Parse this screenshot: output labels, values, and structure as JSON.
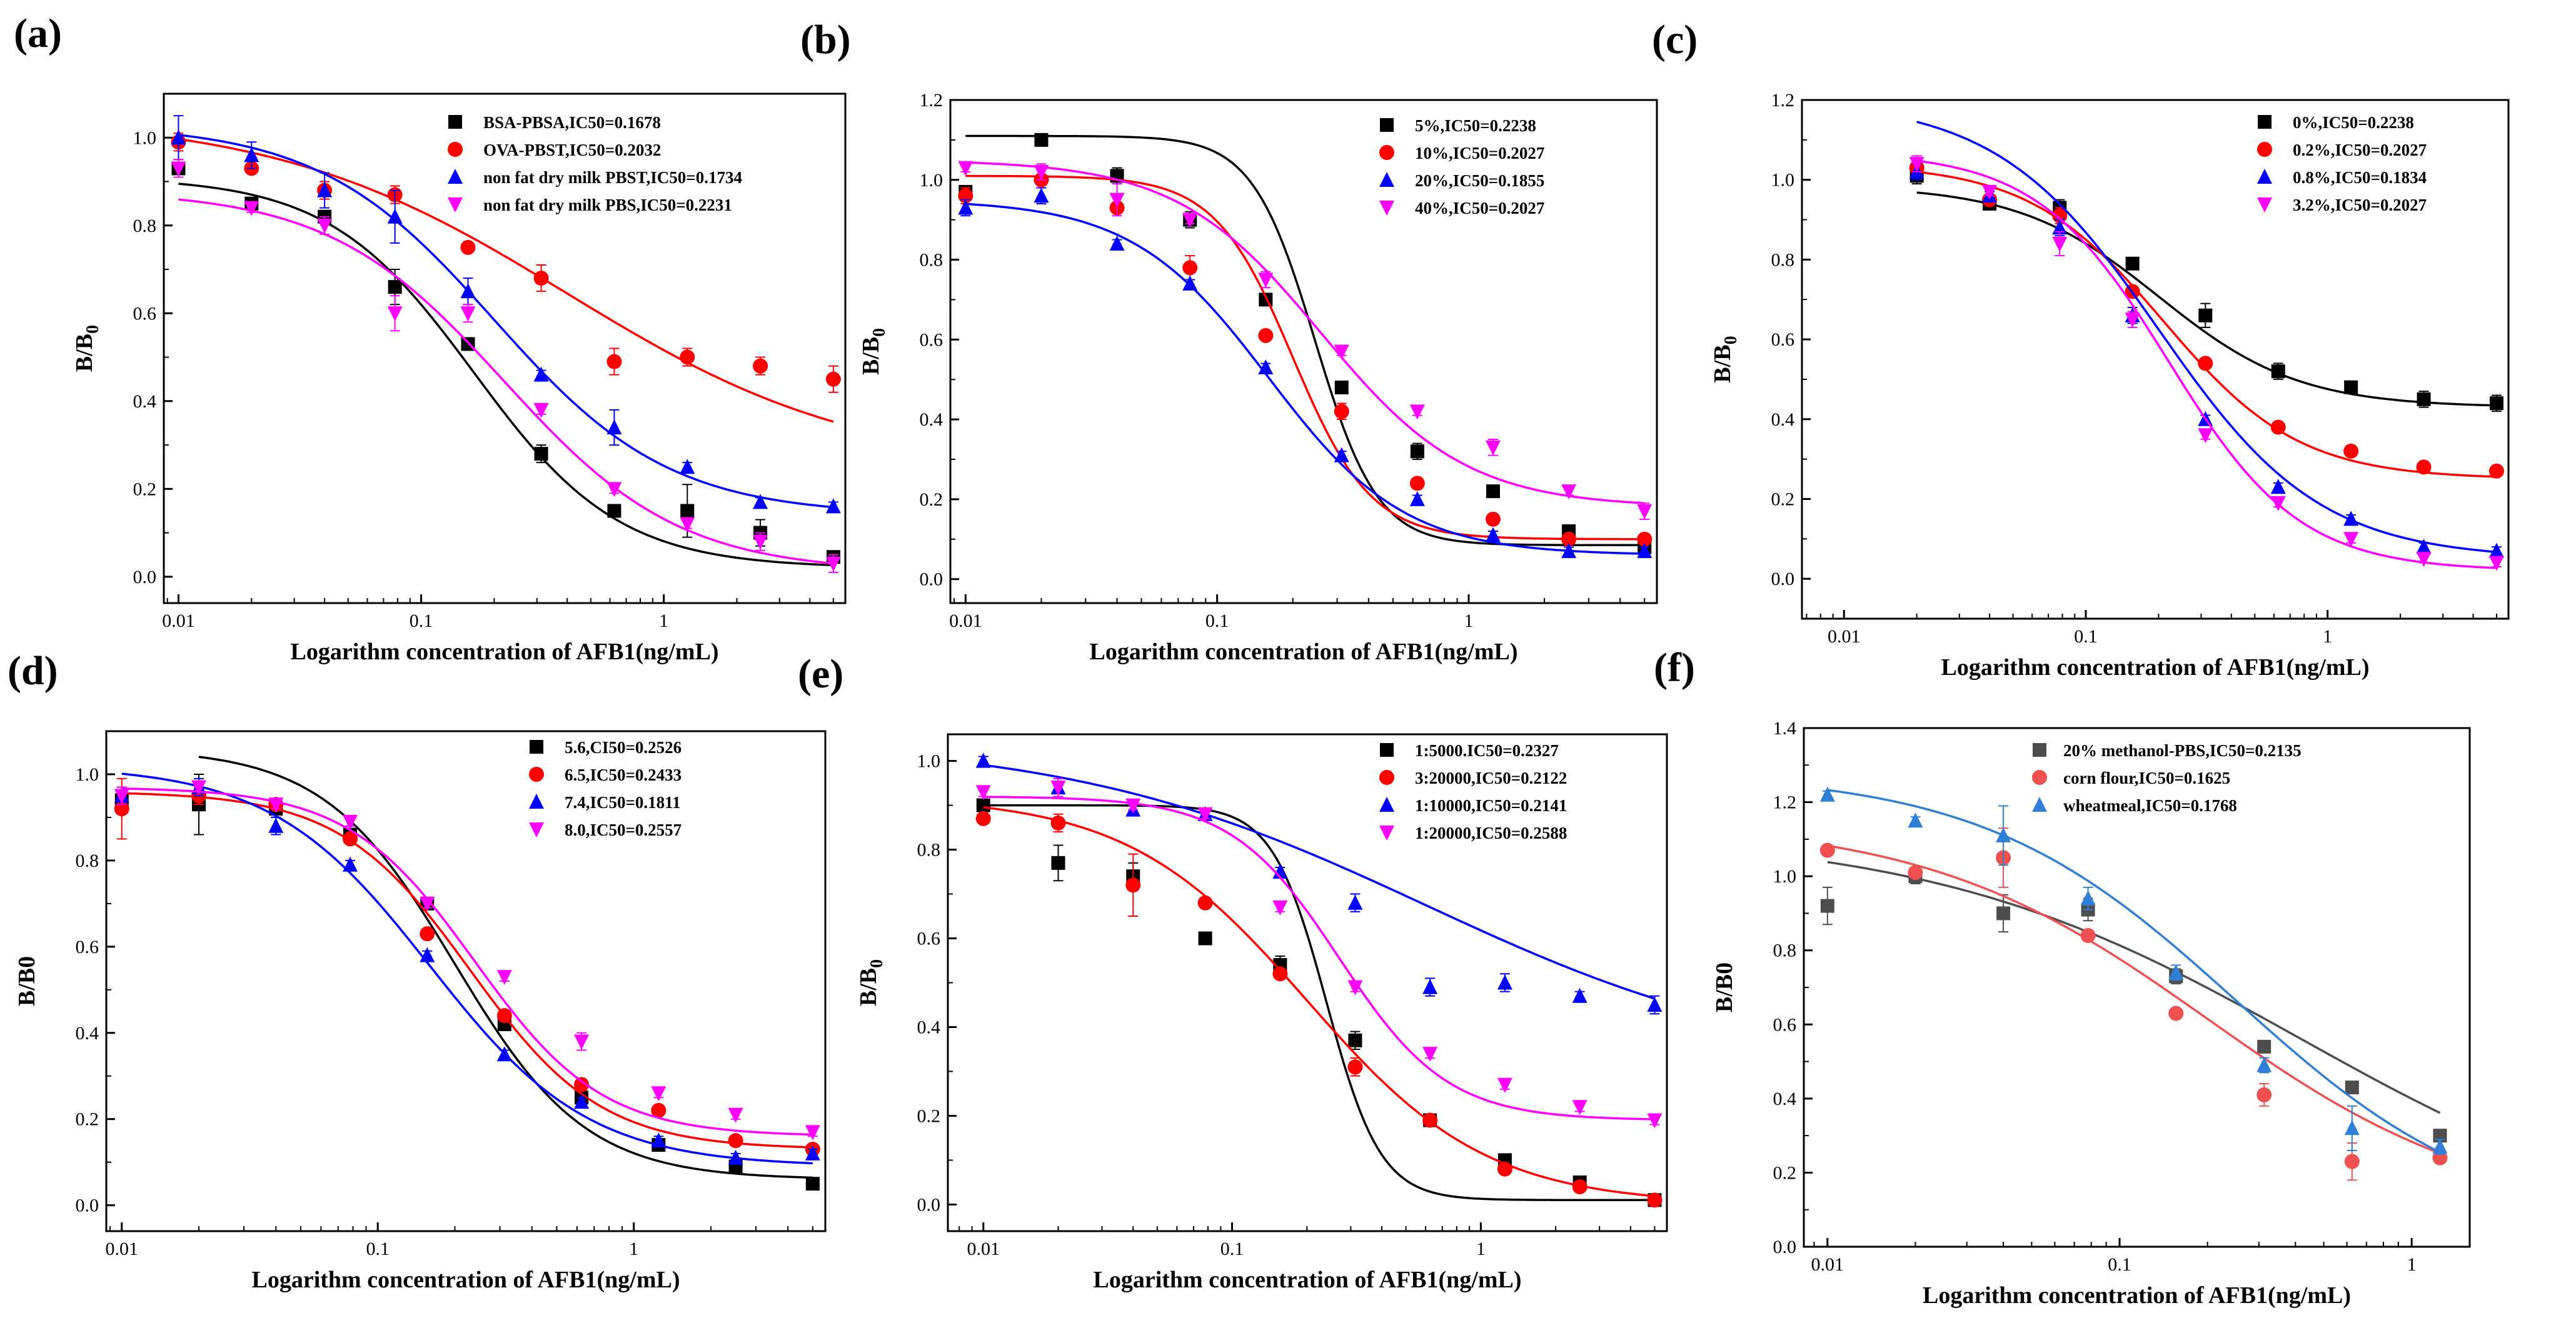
{
  "colors": {
    "black": "#000000",
    "red": "#ff0000",
    "blue": "#0000ff",
    "magenta": "#ff00ff",
    "dark_gray": "#4d4d4d",
    "light_red": "#f05050",
    "sky_blue": "#2e7fd6"
  },
  "chart_data": [
    {
      "type": "scatter",
      "panel": "(a)",
      "xlabel": "Logarithm concentration of AFB1(ng/mL)",
      "ylabel": "B/B0",
      "ylabel_sub": true,
      "xscale": "log",
      "xlim": [
        0.0087,
        5.6
      ],
      "ylim": [
        -0.06,
        1.1
      ],
      "yticks": [
        "0.0",
        "0.2",
        "0.4",
        "0.6",
        "0.8",
        "1.0"
      ],
      "xticks": [
        "0.01",
        "0.1",
        "1"
      ],
      "legend_position": "upper-right",
      "x": [
        0.01,
        0.02,
        0.04,
        0.078,
        0.156,
        0.3125,
        0.625,
        1.25,
        2.5,
        5.0
      ],
      "series": [
        {
          "name": "BSA-PBSA,IC50=0.1678",
          "marker": "square",
          "color": "#000000",
          "y": [
            0.93,
            0.85,
            0.82,
            0.66,
            0.53,
            0.28,
            0.15,
            0.15,
            0.1,
            0.045
          ],
          "err": [
            0.02,
            0.01,
            0.01,
            0.04,
            0.01,
            0.02,
            0.01,
            0.06,
            0.03,
            0.01
          ],
          "fit": {
            "A1": 0.91,
            "A2": 0.02,
            "x0": 0.165,
            "p": 1.45
          }
        },
        {
          "name": "OVA-PBST,IC50=0.2032",
          "marker": "circle",
          "color": "#ff0000",
          "y": [
            0.99,
            0.93,
            0.88,
            0.87,
            0.75,
            0.68,
            0.49,
            0.5,
            0.48,
            0.45
          ],
          "err": [
            0.02,
            0.01,
            0.02,
            0.02,
            0.01,
            0.03,
            0.03,
            0.02,
            0.02,
            0.03
          ],
          "fit": {
            "A1": 1.05,
            "A2": 0.24,
            "x0": 0.4,
            "p": 0.72
          }
        },
        {
          "name": "non fat dry milk PBST,IC50=0.1734",
          "marker": "triangle",
          "color": "#0000ff",
          "y": [
            1.0,
            0.96,
            0.88,
            0.82,
            0.65,
            0.46,
            0.34,
            0.25,
            0.17,
            0.16
          ],
          "err": [
            0.05,
            0.03,
            0.04,
            0.06,
            0.03,
            0.01,
            0.04,
            0.01,
            0.01,
            0.01
          ],
          "fit": {
            "A1": 1.03,
            "A2": 0.14,
            "x0": 0.2,
            "p": 1.2
          }
        },
        {
          "name": "non fat dry milk PBS,IC50=0.2231",
          "marker": "triangle-down",
          "color": "#ff00ff",
          "y": [
            0.93,
            0.84,
            0.8,
            0.6,
            0.6,
            0.38,
            0.2,
            0.12,
            0.08,
            0.03
          ],
          "err": [
            0.02,
            0.01,
            0.02,
            0.04,
            0.02,
            0.01,
            0.01,
            0.01,
            0.02,
            0.02
          ],
          "fit": {
            "A1": 0.88,
            "A2": 0.01,
            "x0": 0.22,
            "p": 1.2
          }
        }
      ]
    },
    {
      "type": "scatter",
      "panel": "(b)",
      "xlabel": "Logarithm concentration of AFB1(ng/mL)",
      "ylabel": "B/B0",
      "ylabel_sub": true,
      "xscale": "log",
      "xlim": [
        0.0087,
        5.6
      ],
      "ylim": [
        -0.06,
        1.2
      ],
      "yticks": [
        "0.0",
        "0.2",
        "0.4",
        "0.6",
        "0.8",
        "1.0",
        "1.2"
      ],
      "xticks": [
        "0.01",
        "0.1",
        "1"
      ],
      "legend_position": "upper-right",
      "x": [
        0.01,
        0.02,
        0.04,
        0.078,
        0.156,
        0.3125,
        0.625,
        1.25,
        2.5,
        5.0
      ],
      "series": [
        {
          "name": "5%,IC50=0.2238",
          "marker": "square",
          "color": "#000000",
          "y": [
            0.97,
            1.1,
            1.01,
            0.9,
            0.7,
            0.48,
            0.32,
            0.22,
            0.12,
            0.08
          ],
          "err": [
            0.01,
            0.01,
            0.02,
            0.02,
            0.01,
            0.01,
            0.02,
            0.01,
            0.01,
            0.01
          ],
          "fit": {
            "A1": 1.11,
            "A2": 0.085,
            "x0": 0.245,
            "p": 3.5
          }
        },
        {
          "name": "10%,IC50=0.2027",
          "marker": "circle",
          "color": "#ff0000",
          "y": [
            0.96,
            1.0,
            0.93,
            0.78,
            0.61,
            0.42,
            0.24,
            0.15,
            0.1,
            0.1
          ],
          "err": [
            0.02,
            0.01,
            0.01,
            0.03,
            0.01,
            0.02,
            0.01,
            0.01,
            0.01,
            0.01
          ],
          "fit": {
            "A1": 1.01,
            "A2": 0.1,
            "x0": 0.2,
            "p": 2.8
          }
        },
        {
          "name": "20%,IC50=0.1855",
          "marker": "triangle",
          "color": "#0000ff",
          "y": [
            0.93,
            0.96,
            0.84,
            0.74,
            0.53,
            0.31,
            0.2,
            0.11,
            0.07,
            0.07
          ],
          "err": [
            0.02,
            0.02,
            0.01,
            0.01,
            0.01,
            0.01,
            0.01,
            0.01,
            0.01,
            0.01
          ],
          "fit": {
            "A1": 0.95,
            "A2": 0.06,
            "x0": 0.16,
            "p": 1.6
          }
        },
        {
          "name": "40%,IC50=0.2027",
          "marker": "triangle-down",
          "color": "#ff00ff",
          "y": [
            1.03,
            1.02,
            0.95,
            0.9,
            0.75,
            0.57,
            0.42,
            0.33,
            0.22,
            0.17
          ],
          "err": [
            0.01,
            0.02,
            0.04,
            0.01,
            0.02,
            0.01,
            0.01,
            0.02,
            0.01,
            0.02
          ],
          "fit": {
            "A1": 1.05,
            "A2": 0.18,
            "x0": 0.26,
            "p": 1.5
          }
        }
      ]
    },
    {
      "type": "scatter",
      "panel": "(c)",
      "xlabel": "Logarithm concentration of AFB1(ng/mL)",
      "ylabel": "B/B0",
      "ylabel_sub": true,
      "xscale": "log",
      "xlim": [
        0.0067,
        5.6
      ],
      "ylim": [
        -0.1,
        1.2
      ],
      "yticks": [
        "0.0",
        "0.2",
        "0.4",
        "0.6",
        "0.8",
        "1.0",
        "1.2"
      ],
      "xticks": [
        "0.01",
        "0.1",
        "1"
      ],
      "legend_position": "upper-right",
      "x": [
        0.02,
        0.04,
        0.078,
        0.156,
        0.3125,
        0.625,
        1.25,
        2.5,
        5.0
      ],
      "series": [
        {
          "name": "0%,IC50=0.2238",
          "marker": "square",
          "color": "#000000",
          "y": [
            1.01,
            0.94,
            0.93,
            0.79,
            0.66,
            0.52,
            0.48,
            0.45,
            0.44
          ],
          "err": [
            0.02,
            0.01,
            0.02,
            0.01,
            0.03,
            0.02,
            0.01,
            0.02,
            0.02
          ],
          "fit": {
            "A1": 0.985,
            "A2": 0.43,
            "x0": 0.2,
            "p": 1.5
          }
        },
        {
          "name": "0.2%,IC50=0.2027",
          "marker": "circle",
          "color": "#ff0000",
          "y": [
            1.03,
            0.95,
            0.91,
            0.72,
            0.54,
            0.38,
            0.32,
            0.28,
            0.27
          ],
          "err": [
            0.02,
            0.01,
            0.02,
            0.01,
            0.01,
            0.01,
            0.01,
            0.01,
            0.01
          ],
          "fit": {
            "A1": 1.04,
            "A2": 0.25,
            "x0": 0.21,
            "p": 1.55
          }
        },
        {
          "name": "0.8%,IC50=0.1834",
          "marker": "triangle",
          "color": "#0000ff",
          "y": [
            1.02,
            0.96,
            0.88,
            0.66,
            0.4,
            0.23,
            0.15,
            0.08,
            0.07
          ],
          "err": [
            0.02,
            0.01,
            0.02,
            0.02,
            0.01,
            0.01,
            0.01,
            0.01,
            0.01
          ],
          "fit": {
            "A1": 1.2,
            "A2": 0.05,
            "x0": 0.2,
            "p": 1.3
          }
        },
        {
          "name": "3.2%,IC50=0.2027",
          "marker": "triangle-down",
          "color": "#ff00ff",
          "y": [
            1.04,
            0.97,
            0.84,
            0.65,
            0.36,
            0.19,
            0.1,
            0.05,
            0.04
          ],
          "err": [
            0.02,
            0.01,
            0.03,
            0.02,
            0.01,
            0.01,
            0.01,
            0.01,
            0.01
          ],
          "fit": {
            "A1": 1.07,
            "A2": 0.02,
            "x0": 0.22,
            "p": 1.6
          }
        }
      ]
    },
    {
      "type": "scatter",
      "panel": "(d)",
      "xlabel": "Logarithm concentration of AFB1(ng/mL)",
      "ylabel": "B/B0",
      "ylabel_sub": false,
      "xscale": "log",
      "xlim": [
        0.0087,
        5.6
      ],
      "ylim": [
        -0.06,
        1.1
      ],
      "yticks": [
        "0.0",
        "0.2",
        "0.4",
        "0.6",
        "0.8",
        "1.0"
      ],
      "xticks": [
        "0.01",
        "0.1",
        "1"
      ],
      "legend_position": "upper-right",
      "x": [
        0.01,
        0.02,
        0.04,
        0.078,
        0.156,
        0.3125,
        0.625,
        1.25,
        2.5,
        5.0
      ],
      "series": [
        {
          "name": "5.6,CI50=0.2526",
          "marker": "square",
          "color": "#000000",
          "y": [
            0.94,
            0.93,
            0.92,
            0.86,
            0.7,
            0.42,
            0.25,
            0.14,
            0.09,
            0.05
          ],
          "err": [
            0.01,
            0.07,
            0.02,
            0.02,
            0.01,
            0.01,
            0.01,
            0.01,
            0.01,
            0.01
          ],
          "fit": {
            "A1": 1.06,
            "A2": 0.06,
            "x0": 0.2,
            "p": 1.7
          },
          "fit_start": 0.02
        },
        {
          "name": "6.5,IC50=0.2433",
          "marker": "circle",
          "color": "#ff0000",
          "y": [
            0.92,
            0.95,
            0.93,
            0.85,
            0.63,
            0.44,
            0.28,
            0.22,
            0.15,
            0.13
          ],
          "err": [
            0.07,
            0.02,
            0.01,
            0.01,
            0.01,
            0.01,
            0.01,
            0.01,
            0.01,
            0.01
          ],
          "fit": {
            "A1": 0.96,
            "A2": 0.13,
            "x0": 0.23,
            "p": 1.7
          }
        },
        {
          "name": "7.4,IC50=0.1811",
          "marker": "triangle",
          "color": "#0000ff",
          "y": [
            0.95,
            0.97,
            0.88,
            0.79,
            0.58,
            0.35,
            0.24,
            0.15,
            0.11,
            0.12
          ],
          "err": [
            0.02,
            0.02,
            0.02,
            0.01,
            0.01,
            0.01,
            0.01,
            0.01,
            0.01,
            0.01
          ],
          "fit": {
            "A1": 1.02,
            "A2": 0.09,
            "x0": 0.16,
            "p": 1.4
          }
        },
        {
          "name": "8.0,IC50=0.2557",
          "marker": "triangle-down",
          "color": "#ff00ff",
          "y": [
            0.95,
            0.97,
            0.93,
            0.89,
            0.7,
            0.53,
            0.38,
            0.26,
            0.21,
            0.17
          ],
          "err": [
            0.02,
            0.01,
            0.01,
            0.01,
            0.01,
            0.01,
            0.02,
            0.01,
            0.01,
            0.01
          ],
          "fit": {
            "A1": 0.97,
            "A2": 0.16,
            "x0": 0.24,
            "p": 1.75
          }
        }
      ]
    },
    {
      "type": "scatter",
      "panel": "(e)",
      "xlabel": "Logarithm concentration of AFB1(ng/mL)",
      "ylabel": "B/B0",
      "ylabel_sub": true,
      "xscale": "log",
      "xlim": [
        0.0072,
        5.6
      ],
      "ylim": [
        -0.06,
        1.06
      ],
      "yticks": [
        "0.0",
        "0.2",
        "0.4",
        "0.6",
        "0.8",
        "1.0"
      ],
      "xticks": [
        "0.01",
        "0.1",
        "1"
      ],
      "legend_position": "upper-right",
      "x": [
        0.01,
        0.02,
        0.04,
        0.078,
        0.156,
        0.3125,
        0.625,
        1.25,
        2.5,
        5.0
      ],
      "series": [
        {
          "name": "1:5000.IC50=0.2327",
          "marker": "square",
          "color": "#000000",
          "y": [
            0.9,
            0.77,
            0.74,
            0.6,
            0.54,
            0.37,
            0.19,
            0.1,
            0.05,
            0.01
          ],
          "err": [
            0.01,
            0.04,
            0.03,
            0.01,
            0.02,
            0.02,
            0.01,
            0.01,
            0.01,
            0.01
          ],
          "fit": {
            "A1": 0.9,
            "A2": 0.01,
            "x0": 0.24,
            "p": 4.0
          }
        },
        {
          "name": "3:20000,IC50=0.2122",
          "marker": "circle",
          "color": "#ff0000",
          "y": [
            0.87,
            0.86,
            0.72,
            0.68,
            0.52,
            0.31,
            0.19,
            0.08,
            0.04,
            0.01
          ],
          "err": [
            0.01,
            0.02,
            0.07,
            0.01,
            0.01,
            0.02,
            0.01,
            0.01,
            0.01,
            0.01
          ],
          "fit": {
            "A1": 0.92,
            "A2": 0.0,
            "x0": 0.2,
            "p": 1.2
          }
        },
        {
          "name": "1:10000,IC50=0.2141",
          "marker": "triangle",
          "color": "#0000ff",
          "y": [
            1.0,
            0.94,
            0.89,
            0.88,
            0.75,
            0.68,
            0.49,
            0.5,
            0.47,
            0.45
          ],
          "err": [
            0.01,
            0.01,
            0.01,
            0.01,
            0.01,
            0.02,
            0.02,
            0.02,
            0.01,
            0.02
          ],
          "fit": {
            "A1": 1.05,
            "A2": 0.3,
            "x0": 0.6,
            "p": 0.6
          }
        },
        {
          "name": "1:20000,IC50=0.2588",
          "marker": "triangle-down",
          "color": "#ff00ff",
          "y": [
            0.93,
            0.94,
            0.9,
            0.88,
            0.67,
            0.49,
            0.34,
            0.27,
            0.22,
            0.19
          ],
          "err": [
            0.01,
            0.02,
            0.01,
            0.01,
            0.01,
            0.01,
            0.01,
            0.01,
            0.01,
            0.01
          ],
          "fit": {
            "A1": 0.92,
            "A2": 0.19,
            "x0": 0.27,
            "p": 2.0
          }
        }
      ]
    },
    {
      "type": "scatter",
      "panel": "(f)",
      "xlabel": "Logarithm concentration of AFB1(ng/mL)",
      "ylabel": "B/B0",
      "ylabel_sub": false,
      "xscale": "log",
      "xlim": [
        0.0083,
        1.58
      ],
      "ylim": [
        0.0,
        1.4
      ],
      "yticks": [
        "0.0",
        "0.2",
        "0.4",
        "0.6",
        "0.8",
        "1.0",
        "1.2",
        "1.4"
      ],
      "xticks": [
        "0.01",
        "0.1",
        "1"
      ],
      "legend_position": "upper-right",
      "x": [
        0.01,
        0.02,
        0.04,
        0.078,
        0.156,
        0.3125,
        0.625,
        1.25
      ],
      "series": [
        {
          "name": "20% methanol-PBS,IC50=0.2135",
          "marker": "square",
          "color": "#4d4d4d",
          "y": [
            0.92,
            1.0,
            0.9,
            0.91,
            0.73,
            0.54,
            0.43,
            0.3
          ],
          "err": [
            0.05,
            0.02,
            0.05,
            0.03,
            0.02,
            0.01,
            0.01,
            0.01
          ],
          "fit": {
            "A1": 1.12,
            "A2": 0.0,
            "x0": 0.42,
            "p": 0.68
          }
        },
        {
          "name": "corn flour,IC50=0.1625",
          "marker": "circle",
          "color": "#f05050",
          "y": [
            1.07,
            1.01,
            1.05,
            0.84,
            0.63,
            0.41,
            0.23,
            0.24
          ],
          "err": [
            0.01,
            0.01,
            0.08,
            0.01,
            0.01,
            0.03,
            0.05,
            0.01
          ],
          "fit": {
            "A1": 1.15,
            "A2": 0.08,
            "x0": 0.2,
            "p": 0.9
          }
        },
        {
          "name": "wheatmeal,IC50=0.1768",
          "marker": "triangle",
          "color": "#2e7fd6",
          "y": [
            1.22,
            1.15,
            1.11,
            0.94,
            0.74,
            0.49,
            0.32,
            0.27
          ],
          "err": [
            0.01,
            0.01,
            0.08,
            0.03,
            0.02,
            0.02,
            0.06,
            0.02
          ],
          "fit": {
            "A1": 1.28,
            "A2": 0.05,
            "x0": 0.25,
            "p": 1.0
          }
        }
      ]
    }
  ]
}
